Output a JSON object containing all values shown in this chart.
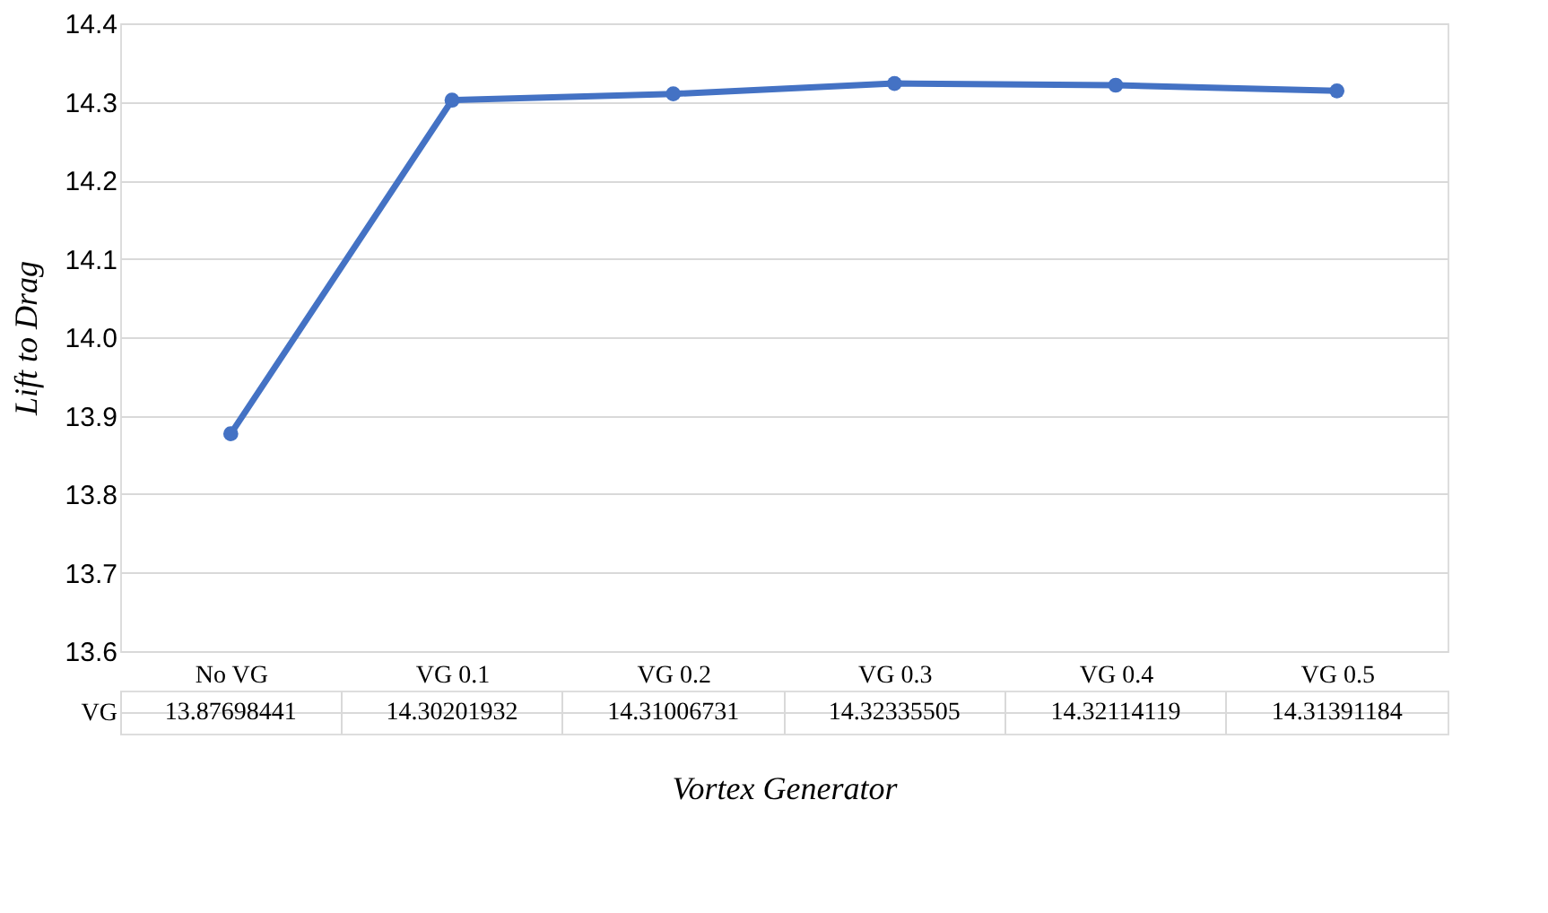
{
  "chart_data": {
    "type": "line",
    "xlabel": "Vortex Generator",
    "ylabel": "Lift to Drag",
    "categories": [
      "No VG",
      "VG 0.1",
      "VG 0.2",
      "VG 0.3",
      "VG 0.4",
      "VG 0.5"
    ],
    "series": [
      {
        "name": "VG",
        "color": "#4472c4",
        "values": [
          13.87698441,
          14.30201932,
          14.31006731,
          14.32335505,
          14.32114119,
          14.31391184
        ]
      }
    ],
    "ylim": [
      13.6,
      14.4
    ],
    "yticks": [
      13.6,
      13.7,
      13.8,
      13.9,
      {
        "value": 14.0,
        "label": "14.0"
      },
      14.1,
      14.2,
      14.3,
      14.4
    ],
    "grid": "y",
    "marker": "circle",
    "line_style": "solid",
    "data_labels": true,
    "legend": false
  }
}
